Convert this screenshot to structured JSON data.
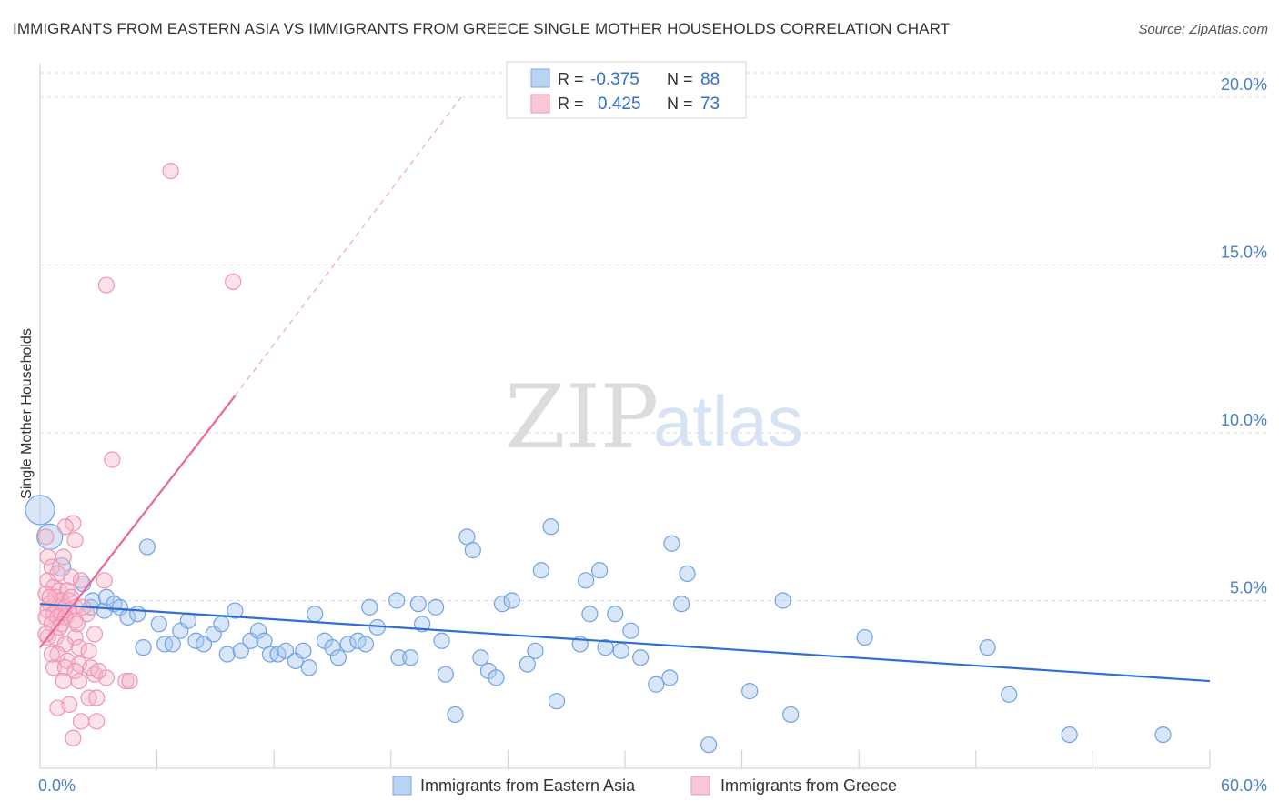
{
  "header": {
    "title": "IMMIGRANTS FROM EASTERN ASIA VS IMMIGRANTS FROM GREECE SINGLE MOTHER HOUSEHOLDS CORRELATION CHART",
    "source": "Source: ZipAtlas.com"
  },
  "watermark": {
    "zip": "ZIP",
    "atlas": "atlas"
  },
  "stats": [
    {
      "r_label": "R =",
      "r_value": "-0.375",
      "n_label": "N =",
      "n_value": "88",
      "color": "#a9c8f0"
    },
    {
      "r_label": "R =",
      "r_value": "0.425",
      "n_label": "N =",
      "n_value": "73",
      "color": "#f6b6c9"
    }
  ],
  "chart_data": {
    "type": "scatter",
    "title": "IMMIGRANTS FROM EASTERN ASIA VS IMMIGRANTS FROM GREECE SINGLE MOTHER HOUSEHOLDS CORRELATION CHART",
    "xlabel": "",
    "ylabel": "Single Mother Households",
    "xlim": [
      0,
      60
    ],
    "ylim": [
      0,
      21
    ],
    "x_tick_labels": [
      "0.0%",
      "60.0%"
    ],
    "y_ticks": [
      5,
      10,
      15,
      20
    ],
    "y_tick_labels": [
      "5.0%",
      "10.0%",
      "15.0%",
      "20.0%"
    ],
    "grid": true,
    "legend_position": "bottom",
    "series": [
      {
        "name": "Immigrants from Eastern Asia",
        "color": "#6fa3e6",
        "points": [
          [
            0.0,
            7.7
          ],
          [
            0.5,
            6.9
          ],
          [
            1.1,
            6.0
          ],
          [
            2.2,
            5.5
          ],
          [
            2.6,
            4.8
          ],
          [
            3.3,
            4.7
          ],
          [
            2.7,
            5.0
          ],
          [
            3.4,
            5.1
          ],
          [
            3.8,
            4.9
          ],
          [
            4.1,
            4.8
          ],
          [
            4.5,
            4.5
          ],
          [
            5.0,
            4.6
          ],
          [
            5.3,
            3.6
          ],
          [
            6.1,
            4.3
          ],
          [
            5.5,
            6.6
          ],
          [
            6.4,
            3.7
          ],
          [
            6.8,
            3.7
          ],
          [
            7.2,
            4.1
          ],
          [
            7.6,
            4.4
          ],
          [
            8.0,
            3.8
          ],
          [
            8.4,
            3.7
          ],
          [
            8.9,
            4.0
          ],
          [
            9.3,
            4.3
          ],
          [
            9.6,
            3.4
          ],
          [
            10.0,
            4.7
          ],
          [
            10.3,
            3.5
          ],
          [
            10.8,
            3.8
          ],
          [
            11.2,
            4.1
          ],
          [
            11.5,
            3.8
          ],
          [
            11.8,
            3.4
          ],
          [
            12.2,
            3.4
          ],
          [
            12.6,
            3.5
          ],
          [
            13.1,
            3.2
          ],
          [
            13.5,
            3.5
          ],
          [
            13.8,
            3.0
          ],
          [
            14.1,
            4.6
          ],
          [
            14.6,
            3.8
          ],
          [
            15.0,
            3.6
          ],
          [
            15.3,
            3.3
          ],
          [
            15.8,
            3.7
          ],
          [
            16.3,
            3.8
          ],
          [
            16.7,
            3.7
          ],
          [
            16.9,
            4.8
          ],
          [
            17.3,
            4.2
          ],
          [
            18.3,
            5.0
          ],
          [
            18.4,
            3.3
          ],
          [
            19.0,
            3.3
          ],
          [
            19.4,
            4.9
          ],
          [
            19.6,
            4.3
          ],
          [
            20.3,
            4.8
          ],
          [
            20.6,
            3.8
          ],
          [
            20.8,
            2.8
          ],
          [
            21.3,
            1.6
          ],
          [
            21.9,
            6.9
          ],
          [
            22.2,
            6.5
          ],
          [
            22.6,
            3.3
          ],
          [
            23.0,
            2.9
          ],
          [
            23.4,
            2.7
          ],
          [
            23.7,
            4.9
          ],
          [
            24.2,
            5.0
          ],
          [
            25.0,
            3.1
          ],
          [
            25.4,
            3.5
          ],
          [
            25.7,
            5.9
          ],
          [
            26.2,
            7.2
          ],
          [
            26.5,
            2.0
          ],
          [
            27.7,
            3.7
          ],
          [
            28.0,
            5.6
          ],
          [
            28.2,
            4.6
          ],
          [
            28.7,
            5.9
          ],
          [
            29.0,
            3.6
          ],
          [
            29.5,
            4.6
          ],
          [
            29.8,
            3.5
          ],
          [
            30.3,
            4.1
          ],
          [
            30.8,
            3.3
          ],
          [
            31.6,
            2.5
          ],
          [
            32.3,
            2.7
          ],
          [
            32.4,
            6.7
          ],
          [
            32.9,
            4.9
          ],
          [
            33.2,
            5.8
          ],
          [
            34.3,
            0.7
          ],
          [
            36.4,
            2.3
          ],
          [
            38.5,
            1.6
          ],
          [
            38.1,
            5.0
          ],
          [
            42.3,
            3.9
          ],
          [
            48.6,
            3.6
          ],
          [
            49.7,
            2.2
          ],
          [
            52.8,
            1.0
          ],
          [
            57.6,
            1.0
          ]
        ]
      },
      {
        "name": "Immigrants from Greece",
        "color": "#f4a0b9",
        "points": [
          [
            6.7,
            17.8
          ],
          [
            3.4,
            14.4
          ],
          [
            9.9,
            14.5
          ],
          [
            3.7,
            9.2
          ],
          [
            1.7,
            7.3
          ],
          [
            1.3,
            7.2
          ],
          [
            1.8,
            6.8
          ],
          [
            0.3,
            6.9
          ],
          [
            0.4,
            6.3
          ],
          [
            1.2,
            6.3
          ],
          [
            0.6,
            6.0
          ],
          [
            0.9,
            5.8
          ],
          [
            1.6,
            5.7
          ],
          [
            0.4,
            5.6
          ],
          [
            2.1,
            5.6
          ],
          [
            3.3,
            5.6
          ],
          [
            0.7,
            5.4
          ],
          [
            1.0,
            5.3
          ],
          [
            1.4,
            5.3
          ],
          [
            0.3,
            5.2
          ],
          [
            0.8,
            5.1
          ],
          [
            1.1,
            5.0
          ],
          [
            1.5,
            5.0
          ],
          [
            0.5,
            4.9
          ],
          [
            0.9,
            4.8
          ],
          [
            1.3,
            4.8
          ],
          [
            1.8,
            4.8
          ],
          [
            0.4,
            4.7
          ],
          [
            0.7,
            4.6
          ],
          [
            1.1,
            4.6
          ],
          [
            1.5,
            4.7
          ],
          [
            2.4,
            4.6
          ],
          [
            0.3,
            4.5
          ],
          [
            0.9,
            4.5
          ],
          [
            1.3,
            4.5
          ],
          [
            1.8,
            4.4
          ],
          [
            0.6,
            4.3
          ],
          [
            1.1,
            4.3
          ],
          [
            2.8,
            4.0
          ],
          [
            0.4,
            3.9
          ],
          [
            0.8,
            3.9
          ],
          [
            1.8,
            3.9
          ],
          [
            1.3,
            3.7
          ],
          [
            2.0,
            3.6
          ],
          [
            2.5,
            3.5
          ],
          [
            0.9,
            3.4
          ],
          [
            1.4,
            3.2
          ],
          [
            2.0,
            3.1
          ],
          [
            0.7,
            3.0
          ],
          [
            1.3,
            3.0
          ],
          [
            1.8,
            2.9
          ],
          [
            2.8,
            2.8
          ],
          [
            3.4,
            2.7
          ],
          [
            1.2,
            2.6
          ],
          [
            2.0,
            2.6
          ],
          [
            4.4,
            2.6
          ],
          [
            4.6,
            2.6
          ],
          [
            2.5,
            2.1
          ],
          [
            2.9,
            2.1
          ],
          [
            1.5,
            1.9
          ],
          [
            0.9,
            1.8
          ],
          [
            2.1,
            1.4
          ],
          [
            2.9,
            1.4
          ],
          [
            1.7,
            0.9
          ],
          [
            0.5,
            5.1
          ],
          [
            1.0,
            4.2
          ],
          [
            1.6,
            5.1
          ],
          [
            2.2,
            4.8
          ],
          [
            0.3,
            4.0
          ],
          [
            1.9,
            4.3
          ],
          [
            2.6,
            3.0
          ],
          [
            3.0,
            2.9
          ],
          [
            0.6,
            3.4
          ]
        ]
      }
    ],
    "trendlines": [
      {
        "series": "Immigrants from Eastern Asia",
        "x": [
          0,
          60
        ],
        "y": [
          4.9,
          2.6
        ],
        "style": "solid",
        "color": "#2f6fd1"
      },
      {
        "series": "Immigrants from Greece",
        "x": [
          0,
          10
        ],
        "y": [
          3.6,
          11.1
        ],
        "style": "solid",
        "color": "#e8689a"
      },
      {
        "series": "Immigrants from Greece",
        "x": [
          10,
          21.6
        ],
        "y": [
          11.1,
          20.0
        ],
        "style": "dashed",
        "color": "#f0a8c0"
      }
    ]
  }
}
